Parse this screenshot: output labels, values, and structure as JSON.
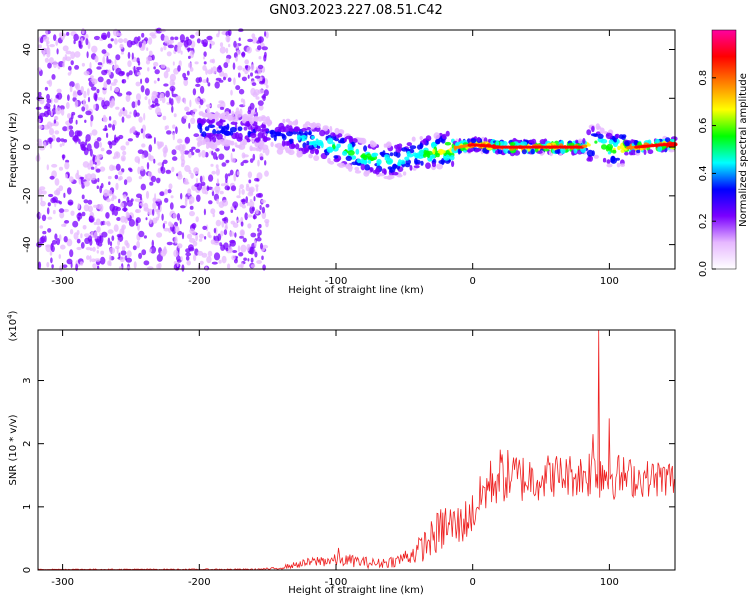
{
  "title": "GN03.2023.227.08.51.C42",
  "chart_data": [
    {
      "type": "heatmap",
      "xlabel": "Height of straight line (km)",
      "ylabel": "Frequency (Hz)",
      "xlim": [
        -318,
        148
      ],
      "ylim": [
        -50,
        48
      ],
      "xticks": [
        -300,
        -200,
        -100,
        0,
        100
      ],
      "yticks": [
        -40,
        -20,
        0,
        20,
        40
      ],
      "colorbar": {
        "label": "Normalized spectral amplitude",
        "range": [
          0,
          1
        ],
        "ticks": [
          "0.0",
          "0.2",
          "0.4",
          "0.6",
          "0.8"
        ],
        "colors": [
          "#ffffff",
          "#e6b8ff",
          "#7a00ff",
          "#0000ff",
          "#00ffff",
          "#00ff00",
          "#ffff00",
          "#ff8000",
          "#ff0000",
          "#ff00a0"
        ]
      },
      "ridge": {
        "x": [
          -200,
          -180,
          -160,
          -140,
          -120,
          -100,
          -80,
          -60,
          -40,
          -20,
          0,
          20,
          40,
          60,
          80,
          90,
          100,
          120,
          140,
          148
        ],
        "frequency": [
          7,
          7,
          6,
          5,
          3,
          0,
          -4,
          -6,
          -3,
          -1,
          1,
          0,
          0,
          0,
          0,
          2,
          -1,
          0,
          1,
          1
        ],
        "amplitude": [
          0.35,
          0.35,
          0.3,
          0.35,
          0.45,
          0.55,
          0.55,
          0.5,
          0.5,
          0.7,
          0.85,
          0.9,
          0.9,
          0.9,
          0.85,
          0.55,
          0.6,
          0.85,
          0.9,
          0.9
        ]
      },
      "noise_region_x": [
        -318,
        -150
      ]
    },
    {
      "type": "line",
      "xlabel": "Height of straight line (km)",
      "ylabel": "SNR (10 * v/v)",
      "multiplier": "(x10",
      "multiplier_exp": "4",
      "multiplier_close": ")",
      "xlim": [
        -318,
        148
      ],
      "ylim": [
        0,
        3.8
      ],
      "xticks": [
        -300,
        -200,
        -100,
        0,
        100
      ],
      "yticks": [
        0,
        1,
        2,
        3
      ],
      "color": "#ee2222",
      "envelope": {
        "x": [
          -318,
          -160,
          -145,
          -130,
          -110,
          -90,
          -70,
          -55,
          -40,
          -30,
          -20,
          -10,
          0,
          10,
          20,
          40,
          60,
          80,
          90,
          100,
          120,
          148
        ],
        "mean": [
          0.01,
          0.01,
          0.02,
          0.08,
          0.15,
          0.15,
          0.1,
          0.15,
          0.3,
          0.5,
          0.7,
          0.7,
          0.9,
          1.3,
          1.5,
          1.45,
          1.5,
          1.5,
          1.6,
          1.5,
          1.45,
          1.45
        ],
        "amplitude": [
          0.005,
          0.01,
          0.02,
          0.05,
          0.1,
          0.1,
          0.08,
          0.1,
          0.2,
          0.3,
          0.4,
          0.35,
          0.35,
          0.4,
          0.45,
          0.4,
          0.35,
          0.35,
          0.5,
          0.4,
          0.3,
          0.3
        ]
      },
      "spikes": [
        {
          "x": 92,
          "y": 3.85
        },
        {
          "x": 100,
          "y": 2.4
        },
        {
          "x": 88,
          "y": 2.15
        },
        {
          "x": -98,
          "y": 0.35
        }
      ]
    }
  ]
}
